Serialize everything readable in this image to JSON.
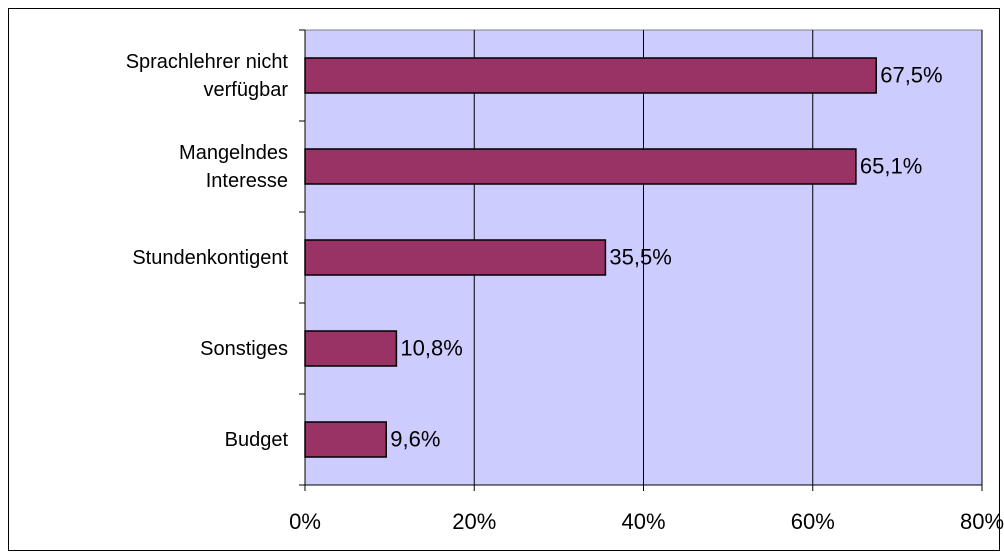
{
  "chart_data": {
    "type": "bar",
    "orientation": "horizontal",
    "categories": [
      "Sprachlehrer nicht\nverfügbar",
      "Mangelndes\nInteresse",
      "Stundenkontigent",
      "Sonstiges",
      "Budget"
    ],
    "values": [
      67.5,
      65.1,
      35.5,
      10.8,
      9.6
    ],
    "value_labels": [
      "67,5%",
      "65,1%",
      "35,5%",
      "10,8%",
      "9,6%"
    ],
    "color": "#993366",
    "plot_background": "#ccccff",
    "xlim": [
      0,
      80
    ],
    "xticks": [
      {
        "value": 0,
        "label": "0%"
      },
      {
        "value": 20,
        "label": "20%"
      },
      {
        "value": 40,
        "label": "40%"
      },
      {
        "value": 60,
        "label": "60%"
      },
      {
        "value": 80,
        "label": "80%"
      }
    ],
    "grid": true
  }
}
